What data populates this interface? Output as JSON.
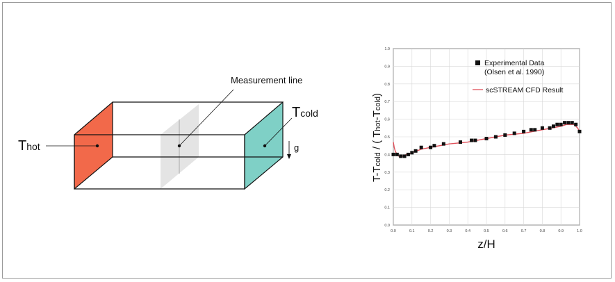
{
  "diagram": {
    "t_hot": {
      "main": "T",
      "sub": "hot"
    },
    "t_cold": {
      "main": "T",
      "sub": "cold"
    },
    "measurement_line_label": "Measurement line",
    "gravity_label": "g",
    "colors": {
      "hot_face": "#f2694a",
      "cold_face": "#7fd0c6",
      "plane": "#e4e4e4",
      "edges": "#111111"
    }
  },
  "chart_data": {
    "type": "line",
    "xlabel": "z/H",
    "ylabel_parts": [
      "T-T",
      "cold",
      " / ( T",
      "hot",
      "-T",
      "cold",
      ")"
    ],
    "xlim": [
      0.0,
      1.0
    ],
    "ylim": [
      0.0,
      1.0
    ],
    "xticks": [
      "0.0",
      "0.1",
      "0.2",
      "0.3",
      "0.4",
      "0.5",
      "0.6",
      "0.7",
      "0.8",
      "0.9",
      "1.0"
    ],
    "yticks": [
      "0.0",
      "0.1",
      "0.2",
      "0.3",
      "0.4",
      "0.5",
      "0.6",
      "0.7",
      "0.8",
      "0.9",
      "1.0"
    ],
    "grid": true,
    "legend_position": "top-right",
    "series": [
      {
        "name": "Experimental Data",
        "name_line2": "(Olsen et al. 1990)",
        "kind": "scatter",
        "marker": "square",
        "color": "#111111",
        "x": [
          0.0,
          0.02,
          0.04,
          0.06,
          0.08,
          0.1,
          0.12,
          0.15,
          0.2,
          0.22,
          0.27,
          0.36,
          0.42,
          0.44,
          0.5,
          0.55,
          0.6,
          0.65,
          0.7,
          0.74,
          0.76,
          0.8,
          0.84,
          0.86,
          0.88,
          0.9,
          0.92,
          0.94,
          0.96,
          0.98,
          1.0
        ],
        "y": [
          0.4,
          0.4,
          0.39,
          0.39,
          0.4,
          0.41,
          0.42,
          0.44,
          0.44,
          0.45,
          0.46,
          0.47,
          0.48,
          0.48,
          0.49,
          0.5,
          0.51,
          0.52,
          0.53,
          0.54,
          0.54,
          0.55,
          0.55,
          0.56,
          0.57,
          0.57,
          0.58,
          0.58,
          0.58,
          0.57,
          0.53
        ]
      },
      {
        "name": "scSTREAM CFD Result",
        "kind": "line",
        "color": "#e0505a",
        "x": [
          0.0,
          0.005,
          0.01,
          0.02,
          0.03,
          0.05,
          0.07,
          0.1,
          0.15,
          0.2,
          0.3,
          0.4,
          0.5,
          0.6,
          0.7,
          0.8,
          0.85,
          0.9,
          0.93,
          0.95,
          0.97,
          0.98,
          0.99,
          1.0
        ],
        "y": [
          0.47,
          0.44,
          0.42,
          0.4,
          0.39,
          0.39,
          0.4,
          0.41,
          0.43,
          0.44,
          0.46,
          0.47,
          0.49,
          0.51,
          0.52,
          0.54,
          0.55,
          0.56,
          0.57,
          0.57,
          0.57,
          0.56,
          0.55,
          0.53
        ]
      }
    ]
  }
}
